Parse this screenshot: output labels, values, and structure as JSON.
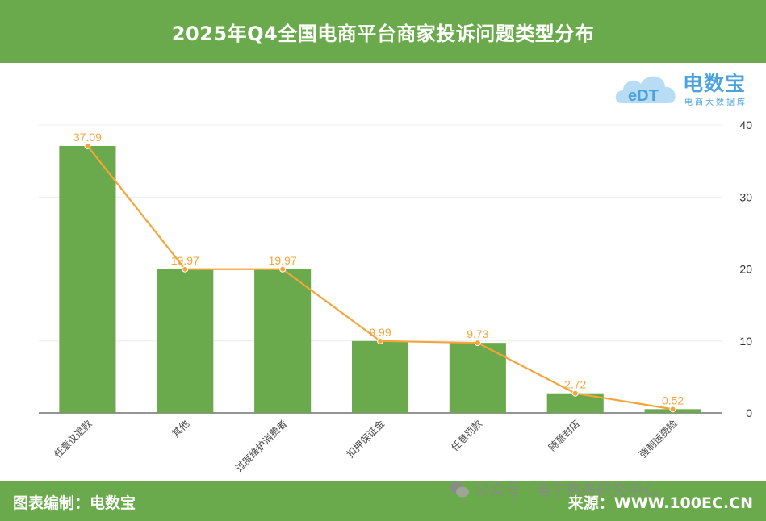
{
  "header": {
    "title": "2025年Q4全国电商平台商家投诉问题类型分布"
  },
  "logo": {
    "brand": "电数宝",
    "sub": "电商大数据库",
    "mark": "eDT"
  },
  "footer": {
    "left": "图表编制：电数宝",
    "right": "来源：WWW.100EC.CN"
  },
  "watermark": {
    "text": "公众号 · 电子商务研究中心"
  },
  "colors": {
    "bar": "#6aaa4c",
    "line": "#f5a43a",
    "label": "#f5a43a",
    "header": "#6aaa4c"
  },
  "chart_data": {
    "type": "bar",
    "title": "2025年Q4全国电商平台商家投诉问题类型分布",
    "categories": [
      "任意仅退款",
      "其他",
      "过度维护消费者",
      "扣押保证金",
      "任意罚款",
      "随意封店",
      "强制运费险"
    ],
    "series": [
      {
        "type": "bar",
        "values": [
          37.09,
          19.97,
          19.97,
          9.99,
          9.73,
          2.72,
          0.52
        ]
      },
      {
        "type": "line",
        "values": [
          37.09,
          19.97,
          19.97,
          9.99,
          9.73,
          2.72,
          0.52
        ]
      }
    ],
    "data_labels": [
      "37.09",
      "19.97",
      "19.97",
      "9.99",
      "9.73",
      "2.72",
      "0.52"
    ],
    "y_ticks": [
      "0",
      "10",
      "20",
      "30",
      "40"
    ],
    "ylim": [
      0,
      40
    ],
    "y_axis_position": "right",
    "grid": true
  }
}
